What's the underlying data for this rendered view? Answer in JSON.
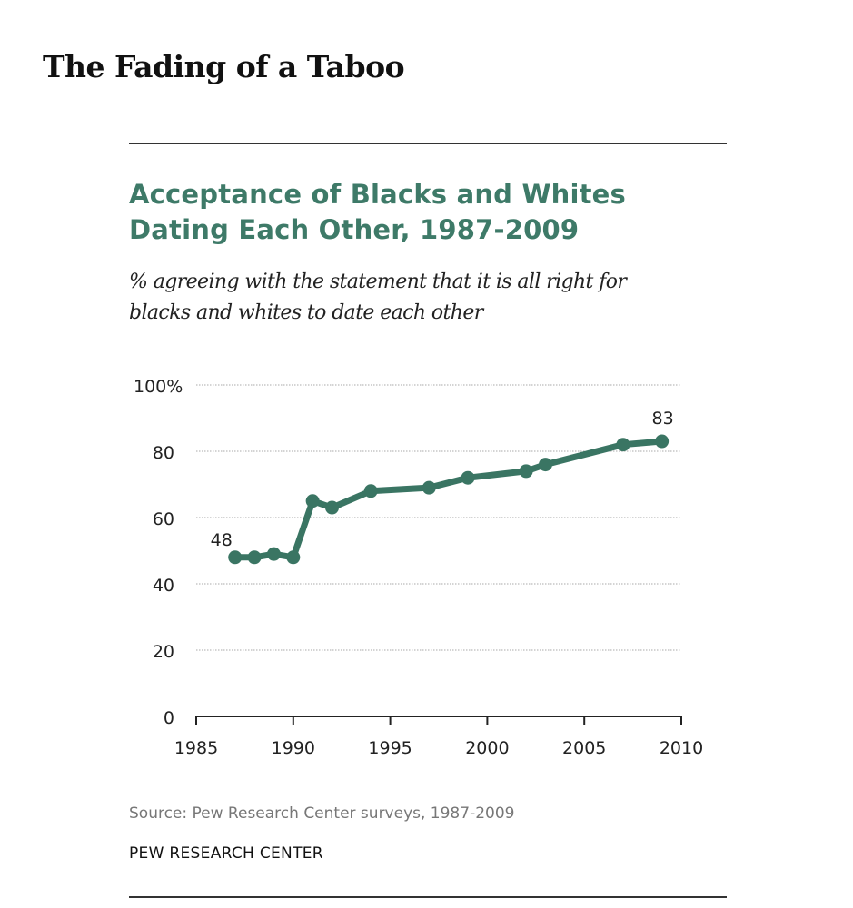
{
  "page_title": "The Fading of a Taboo",
  "chart_data": {
    "type": "line",
    "title": "Acceptance of Blacks and Whites Dating Each Other, 1987-2009",
    "title_lines": [
      "Acceptance of Blacks and Whites",
      "Dating Each Other, 1987-2009"
    ],
    "subtitle": "% agreeing with the statement that it is all right for blacks and whites to date each other",
    "subtitle_lines": [
      "% agreeing with the statement that it is all right for",
      "blacks and whites to date each other"
    ],
    "xlabel": "",
    "ylabel": "",
    "x": [
      1987,
      1988,
      1989,
      1990,
      1991,
      1992,
      1994,
      1997,
      1999,
      2002,
      2003,
      2007,
      2009
    ],
    "series": [
      {
        "name": "% agreeing",
        "values": [
          48,
          48,
          49,
          48,
          65,
          63,
          68,
          69,
          72,
          74,
          76,
          82,
          83
        ],
        "color": "#3a7563"
      }
    ],
    "data_labels": [
      {
        "x": 1987,
        "text": "48"
      },
      {
        "x": 2009,
        "text": "83"
      }
    ],
    "xlim": [
      1985,
      2010
    ],
    "ylim": [
      0,
      100
    ],
    "x_ticks": [
      "1985",
      "1990",
      "1995",
      "2000",
      "2005",
      "2010"
    ],
    "y_ticks": [
      "0",
      "20",
      "40",
      "60",
      "80",
      "100%"
    ],
    "grid": true,
    "source": "Source: Pew Research Center surveys, 1987-2009",
    "org": "PEW RESEARCH CENTER"
  }
}
